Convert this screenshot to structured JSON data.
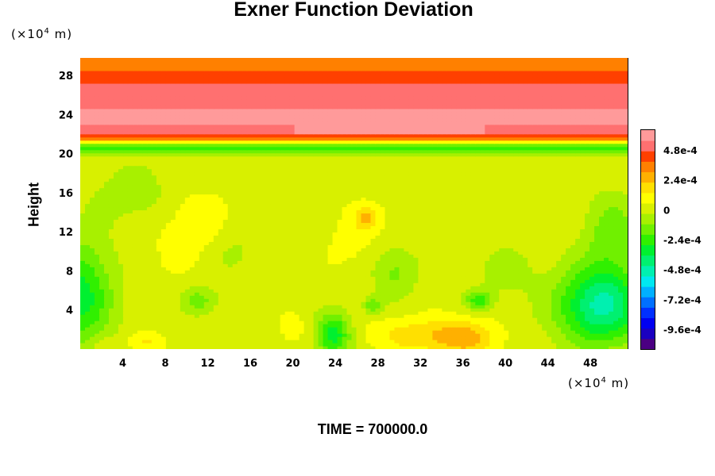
{
  "chart_data": {
    "type": "heatmap",
    "title": "Exner Function Deviation",
    "ylabel": "Height",
    "xlabel": "",
    "x_unit": {
      "prefix": "(×10",
      "exp": "4",
      "suffix": " m)"
    },
    "y_unit": {
      "prefix": "(×10",
      "exp": "4",
      "suffix": " m)"
    },
    "time_label": "TIME = 700000.0",
    "xlim": [
      0,
      51.5
    ],
    "ylim": [
      0,
      29.8
    ],
    "x_ticks": [
      "4",
      "8",
      "12",
      "16",
      "20",
      "24",
      "28",
      "32",
      "36",
      "40",
      "44",
      "48"
    ],
    "x_tick_values": [
      4,
      8,
      12,
      16,
      20,
      24,
      28,
      32,
      36,
      40,
      44,
      48
    ],
    "y_ticks": [
      "4",
      "8",
      "12",
      "16",
      "20",
      "24",
      "28"
    ],
    "y_tick_values": [
      4,
      8,
      12,
      16,
      20,
      24,
      28
    ],
    "colorbar": {
      "range": [
        -0.00112,
        0.00064
      ],
      "labels": [
        "4.8e-4",
        "2.4e-4",
        "0",
        "-2.4e-4",
        "-4.8e-4",
        "-7.2e-4",
        "-9.6e-4"
      ],
      "label_values": [
        0.00048,
        0.00024,
        0,
        -0.00024,
        -0.00048,
        -0.00072,
        -0.00096
      ],
      "colors": [
        "#4b0082",
        "#1a00c0",
        "#0000f0",
        "#0030ff",
        "#0070ff",
        "#00b0ff",
        "#00e8f0",
        "#00f0b0",
        "#00f070",
        "#00f030",
        "#30f000",
        "#70f000",
        "#a8f000",
        "#d8f000",
        "#ffff00",
        "#ffe000",
        "#ffb000",
        "#ff8000",
        "#ff4000",
        "#ff7070",
        "#ff9a9a"
      ]
    },
    "field": {
      "background_value": 2e-05,
      "profile": [
        {
          "z": 29.8,
          "v": 0.0003
        },
        {
          "z": 28.5,
          "v": 0.0004
        },
        {
          "z": 26.5,
          "v": 0.0005
        },
        {
          "z": 24.5,
          "v": 0.00056
        },
        {
          "z": 23.0,
          "v": 0.00056
        },
        {
          "z": 22.0,
          "v": 0.0005
        },
        {
          "z": 21.6,
          "v": 0.0004
        },
        {
          "z": 21.3,
          "v": 0.0002
        },
        {
          "z": 21.0,
          "v": -0.0001
        },
        {
          "z": 20.5,
          "v": -0.00028
        },
        {
          "z": 20.0,
          "v": -8e-05
        },
        {
          "z": 19.5,
          "v": 2e-05
        }
      ],
      "blobs": [
        {
          "x": 0,
          "y": 5.5,
          "sx": 3.0,
          "sy": 5.5,
          "a": -0.00034
        },
        {
          "x": 49,
          "y": 4.5,
          "sx": 4.0,
          "sy": 4.0,
          "a": -0.0005
        },
        {
          "x": 50,
          "y": 12,
          "sx": 2.5,
          "sy": 4,
          "a": -0.00018
        },
        {
          "x": 23.8,
          "y": 1.5,
          "sx": 1.6,
          "sy": 2.2,
          "a": -0.00036
        },
        {
          "x": 11.2,
          "y": 5.0,
          "sx": 1.6,
          "sy": 1.5,
          "a": -0.00018
        },
        {
          "x": 29.5,
          "y": 8.0,
          "sx": 2.2,
          "sy": 2.6,
          "a": -0.00016
        },
        {
          "x": 37.5,
          "y": 5.0,
          "sx": 1.2,
          "sy": 1.0,
          "a": -0.00026
        },
        {
          "x": 27.5,
          "y": 4.5,
          "sx": 0.9,
          "sy": 0.9,
          "a": -0.0002
        },
        {
          "x": 14,
          "y": 10,
          "sx": 3.0,
          "sy": 3.0,
          "a": -0.0001
        },
        {
          "x": 40,
          "y": 8,
          "sx": 3.0,
          "sy": 3.0,
          "a": -8e-05
        },
        {
          "x": 5,
          "y": 16,
          "sx": 4,
          "sy": 3,
          "a": -0.0001
        },
        {
          "x": 36,
          "y": 1.2,
          "sx": 3.2,
          "sy": 1.8,
          "a": 0.00024
        },
        {
          "x": 31,
          "y": 1.5,
          "sx": 4.0,
          "sy": 1.8,
          "a": 0.00014
        },
        {
          "x": 6,
          "y": 0.8,
          "sx": 1.6,
          "sy": 1.0,
          "a": 0.00014
        },
        {
          "x": 11,
          "y": 12,
          "sx": 3.5,
          "sy": 4,
          "a": 0.00012
        },
        {
          "x": 27,
          "y": 13.5,
          "sx": 1.2,
          "sy": 1.2,
          "a": 0.00018
        },
        {
          "x": 26,
          "y": 11,
          "sx": 3,
          "sy": 4,
          "a": 6e-05
        },
        {
          "x": 20,
          "y": 2.0,
          "sx": 1.8,
          "sy": 1.8,
          "a": 6e-05
        },
        {
          "x": 2,
          "y": 0.5,
          "sx": 1.5,
          "sy": 1,
          "a": 6e-05
        }
      ]
    }
  }
}
